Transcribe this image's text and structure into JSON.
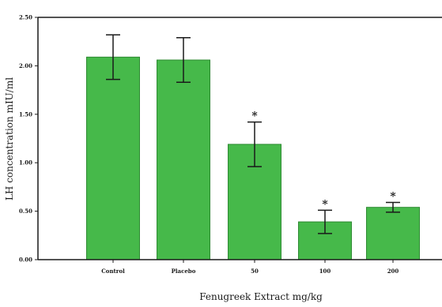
{
  "chart_data": {
    "type": "bar",
    "title": "",
    "xlabel": "Fenugreek Extract  mg/kg",
    "ylabel": "LH concentration mIU/ml",
    "categories": [
      "Control",
      "Placebo",
      "50",
      "100",
      "200"
    ],
    "values": [
      2.09,
      2.06,
      1.19,
      0.39,
      0.54
    ],
    "error_bars": [
      0.23,
      0.23,
      0.23,
      0.12,
      0.05
    ],
    "significance": [
      "",
      "",
      "*",
      "*",
      "*"
    ],
    "ylim": [
      0,
      2.5
    ],
    "yticks": [
      "0.00",
      "0.50",
      "1.00",
      "1.50",
      "2.00",
      "2.50"
    ],
    "grid": false,
    "bar_color": "#46b94a",
    "bar_edge_color": "#2f8a33"
  }
}
